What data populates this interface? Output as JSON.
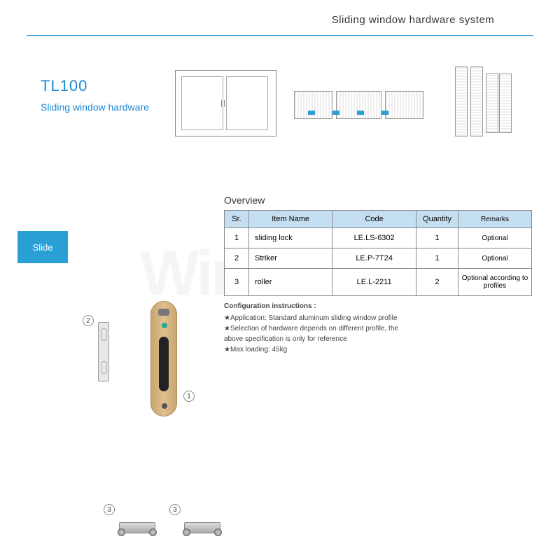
{
  "header": {
    "title": "Sliding window hardware system"
  },
  "product": {
    "code": "TL100",
    "subtitle": "Sliding window hardware"
  },
  "tab": {
    "label": "Slide"
  },
  "overview": {
    "title": "Overview",
    "columns": [
      "Sr.",
      "Item Name",
      "Code",
      "Quantity",
      "Remarks"
    ],
    "rows": [
      {
        "sr": "1",
        "item_name": "sliding lock",
        "code": "LE.LS-6302",
        "quantity": "1",
        "remarks": "Optional"
      },
      {
        "sr": "2",
        "item_name": "Striker",
        "code": "LE.P-7T24",
        "quantity": "1",
        "remarks": "Optional"
      },
      {
        "sr": "3",
        "item_name": "roller",
        "code": "LE.L-2211",
        "quantity": "2",
        "remarks": "Optional according to profiles"
      }
    ]
  },
  "config": {
    "heading": "Configuration instructions :",
    "lines": [
      "★Application: Standard aluminum sliding window profile",
      "★Selection of hardware depends on different profile, the",
      "   above specification is only for reference",
      "★Max loading: 45kg"
    ]
  },
  "callouts": {
    "c1": "1",
    "c2": "2",
    "c3": "3"
  },
  "colors": {
    "accent": "#1e88d6",
    "tab_bg": "#2a9fd6",
    "table_header_bg": "#c5dff2",
    "border": "#888888",
    "lock_body": "#c9a570"
  },
  "watermark": "Windo"
}
